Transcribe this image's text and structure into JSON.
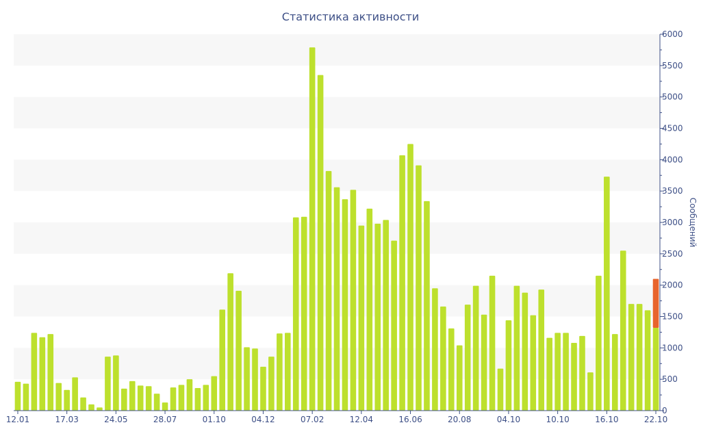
{
  "chart_data": {
    "type": "bar",
    "title": "Статистика активности",
    "ylabel": "Сообщений",
    "ylim": [
      0,
      6000
    ],
    "y_ticks": [
      0,
      500,
      1000,
      1500,
      2000,
      2500,
      3000,
      3500,
      4000,
      4500,
      5000,
      5500,
      6000
    ],
    "y_axis_position": "right",
    "grid": "alternating horizontal bands",
    "x_tick_labels": [
      {
        "index": 0,
        "label": "12.01"
      },
      {
        "index": 6,
        "label": "17.03"
      },
      {
        "index": 12,
        "label": "24.05"
      },
      {
        "index": 18,
        "label": "28.07"
      },
      {
        "index": 24,
        "label": "01.10"
      },
      {
        "index": 30,
        "label": "04.12"
      },
      {
        "index": 36,
        "label": "07.02"
      },
      {
        "index": 42,
        "label": "12.04"
      },
      {
        "index": 48,
        "label": "16.06"
      },
      {
        "index": 54,
        "label": "20.08"
      },
      {
        "index": 60,
        "label": "04.10"
      },
      {
        "index": 66,
        "label": "10.10"
      },
      {
        "index": 72,
        "label": "16.10"
      },
      {
        "index": 78,
        "label": "22.10"
      }
    ],
    "series": [
      {
        "color": "#bde02d",
        "values": [
          460,
          430,
          1240,
          1170,
          1220,
          440,
          330,
          530,
          210,
          100,
          50,
          860,
          880,
          350,
          470,
          400,
          390,
          270,
          130,
          370,
          410,
          500,
          360,
          410,
          550,
          1610,
          2190,
          1910,
          1010,
          990,
          700,
          860,
          1230,
          1240,
          3080,
          3090,
          5790,
          5350,
          3820,
          3560,
          3370,
          3520,
          2950,
          3220,
          2980,
          3040,
          2710,
          4070,
          4250,
          3910,
          3340,
          1950,
          1660,
          1310,
          1040,
          1690,
          1990,
          1530,
          2150,
          670,
          1440,
          1990,
          1880,
          1520,
          1930,
          1160,
          1240,
          1240,
          1080,
          1190,
          610,
          2150,
          3730,
          1220,
          2550,
          1700,
          1700,
          1600,
          1320
        ]
      },
      {
        "color": "#e8642c",
        "values": [
          0,
          0,
          0,
          0,
          0,
          0,
          0,
          0,
          0,
          0,
          0,
          0,
          0,
          0,
          0,
          0,
          0,
          0,
          0,
          0,
          0,
          0,
          0,
          0,
          0,
          0,
          0,
          0,
          0,
          0,
          0,
          0,
          0,
          0,
          0,
          0,
          0,
          0,
          0,
          0,
          0,
          0,
          0,
          0,
          0,
          0,
          0,
          0,
          0,
          0,
          0,
          0,
          0,
          0,
          0,
          0,
          0,
          0,
          0,
          0,
          0,
          0,
          0,
          0,
          0,
          0,
          0,
          0,
          0,
          0,
          0,
          0,
          0,
          0,
          0,
          0,
          0,
          0,
          780
        ]
      }
    ]
  }
}
